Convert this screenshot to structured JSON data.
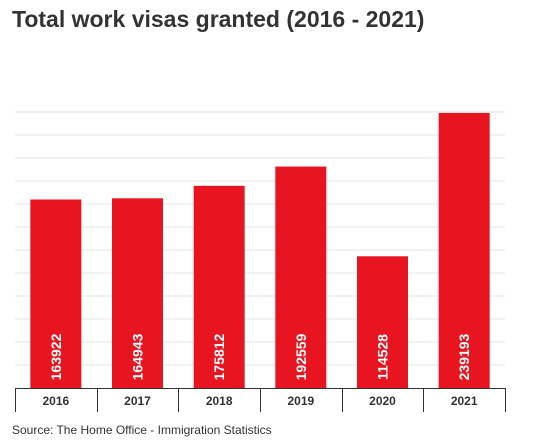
{
  "chart_data": {
    "type": "bar",
    "title": "Total work visas granted (2016 - 2021)",
    "categories": [
      "2016",
      "2017",
      "2018",
      "2019",
      "2020",
      "2021"
    ],
    "values": [
      163922,
      164943,
      175812,
      192559,
      114528,
      239193
    ],
    "data_labels": [
      "163922",
      "164943",
      "175812",
      "192559",
      "114528",
      "239193"
    ],
    "ylim": [
      0,
      240000
    ],
    "y_gridlines": [
      0,
      20000,
      40000,
      60000,
      80000,
      100000,
      120000,
      140000,
      160000,
      180000,
      200000,
      220000,
      240000
    ],
    "y_tick_labels_shown": false,
    "grid": true,
    "bar_color": "#e8141f",
    "grid_color": "#e6e6e6",
    "label_color": "#ffffff"
  },
  "source": "Source: The Home Office - Immigration Statistics"
}
